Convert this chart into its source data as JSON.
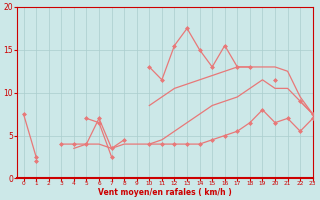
{
  "x": [
    0,
    1,
    2,
    3,
    4,
    5,
    6,
    7,
    8,
    9,
    10,
    11,
    12,
    13,
    14,
    15,
    16,
    17,
    18,
    19,
    20,
    21,
    22,
    23
  ],
  "line_jagged_top": [
    7.5,
    2.5,
    null,
    null,
    null,
    7,
    6.5,
    2.5,
    null,
    null,
    13,
    11.5,
    15.5,
    17.5,
    15,
    13,
    15.5,
    13,
    13,
    null,
    11.5,
    null,
    9,
    7.5
  ],
  "line_smooth_top": [
    7.5,
    null,
    null,
    null,
    null,
    null,
    null,
    null,
    null,
    null,
    8.5,
    9.5,
    10.5,
    11,
    11.5,
    12,
    12.5,
    13,
    13,
    13,
    13,
    12.5,
    9.5,
    7.5
  ],
  "line_smooth_bot": [
    null,
    2.0,
    null,
    null,
    3.5,
    4.0,
    4.0,
    3.5,
    4.0,
    4.0,
    4.0,
    4.5,
    5.5,
    6.5,
    7.5,
    8.5,
    9.0,
    9.5,
    10.5,
    11.5,
    10.5,
    10.5,
    9.0,
    7.5
  ],
  "line_jagged_bot": [
    null,
    2.0,
    null,
    4.0,
    4.0,
    4.0,
    7.0,
    3.5,
    4.5,
    null,
    4.0,
    4.0,
    4.0,
    4.0,
    4.0,
    4.5,
    5.0,
    5.5,
    6.5,
    8.0,
    6.5,
    7.0,
    5.5,
    7.0
  ],
  "bg_color": "#cce8e8",
  "line_color": "#e87878",
  "grid_color": "#aacece",
  "xlabel": "Vent moyen/en rafales ( km/h )",
  "xlabel_color": "#cc0000",
  "tick_color": "#cc0000",
  "ylim": [
    0,
    20
  ],
  "xlim": [
    -0.5,
    23
  ],
  "yticks": [
    0,
    5,
    10,
    15,
    20
  ],
  "xticks": [
    0,
    1,
    2,
    3,
    4,
    5,
    6,
    7,
    8,
    9,
    10,
    11,
    12,
    13,
    14,
    15,
    16,
    17,
    18,
    19,
    20,
    21,
    22,
    23
  ]
}
